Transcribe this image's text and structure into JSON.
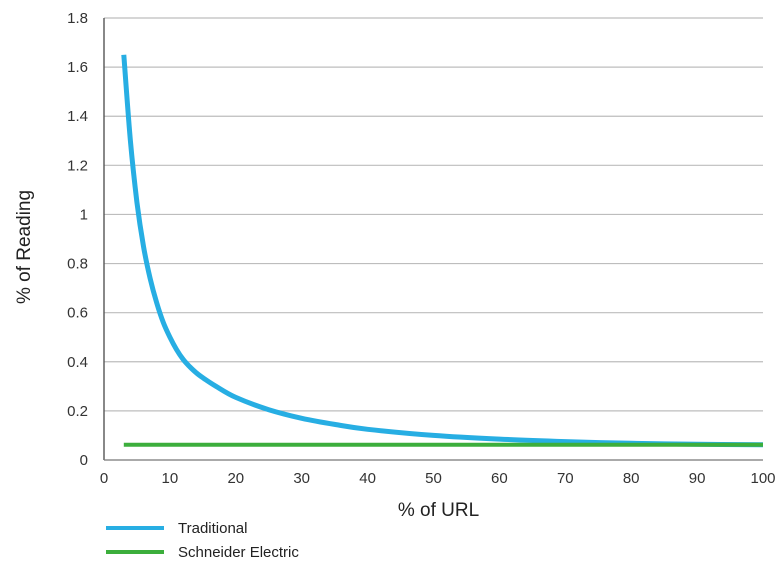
{
  "chart_data": {
    "type": "line",
    "title": "",
    "xlabel": "% of URL",
    "ylabel": "% of Reading",
    "xlim": [
      0,
      100
    ],
    "ylim": [
      0,
      1.8
    ],
    "x_ticks": [
      "0",
      "10",
      "20",
      "30",
      "40",
      "50",
      "60",
      "70",
      "80",
      "90",
      "100"
    ],
    "y_ticks": [
      "0",
      "0.2",
      "0.4",
      "0.6",
      "0.8",
      "1",
      "1.2",
      "1.4",
      "1.6",
      "1.8"
    ],
    "grid": "horizontal",
    "legend_position": "bottom-left",
    "series": [
      {
        "name": "Traditional",
        "color": "#27aee3",
        "x": [
          3,
          4,
          5,
          6,
          7,
          8,
          9,
          10,
          11,
          12,
          13,
          14,
          15,
          17,
          20,
          25,
          30,
          35,
          40,
          50,
          60,
          70,
          80,
          90,
          100
        ],
        "y": [
          1.65,
          1.3,
          1.05,
          0.87,
          0.74,
          0.64,
          0.56,
          0.5,
          0.45,
          0.41,
          0.38,
          0.355,
          0.335,
          0.3,
          0.255,
          0.205,
          0.17,
          0.145,
          0.125,
          0.1,
          0.085,
          0.075,
          0.068,
          0.064,
          0.062
        ]
      },
      {
        "name": "Schneider Electric",
        "color": "#3cae3c",
        "x": [
          3,
          100
        ],
        "y": [
          0.062,
          0.062
        ]
      }
    ]
  }
}
